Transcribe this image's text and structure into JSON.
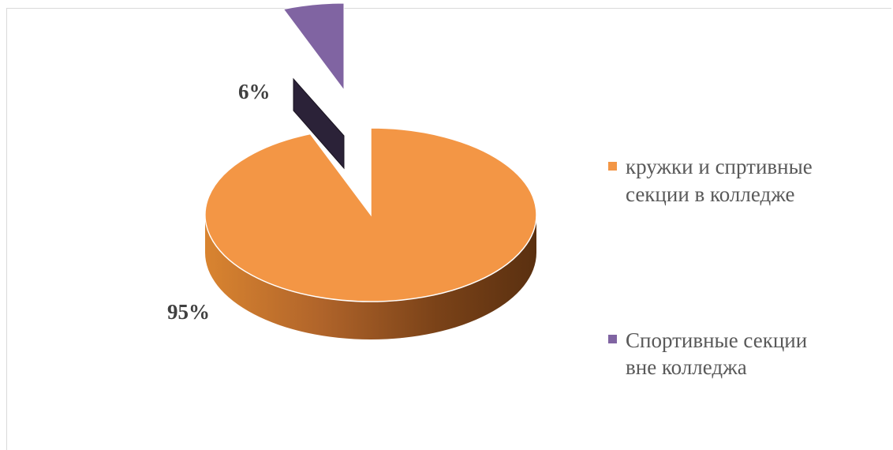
{
  "chart_data": {
    "type": "pie",
    "title": "",
    "three_d": true,
    "exploded_slice": 1,
    "slices": [
      {
        "label": "кружки и спртивные секции в колледже",
        "display_label": "95%",
        "value": 95,
        "color": "#f39645"
      },
      {
        "label": "Спортивные секции вне колледжа",
        "display_label": "6%",
        "value": 6,
        "color": "#8064a2"
      }
    ],
    "legend": {
      "position": "right",
      "entries": [
        {
          "lines": [
            "кружки и спртивные",
            "секции в колледже"
          ],
          "color": "#f39645"
        },
        {
          "lines": [
            "Спортивные секции",
            "вне колледжа"
          ],
          "color": "#8064a2"
        }
      ]
    }
  }
}
